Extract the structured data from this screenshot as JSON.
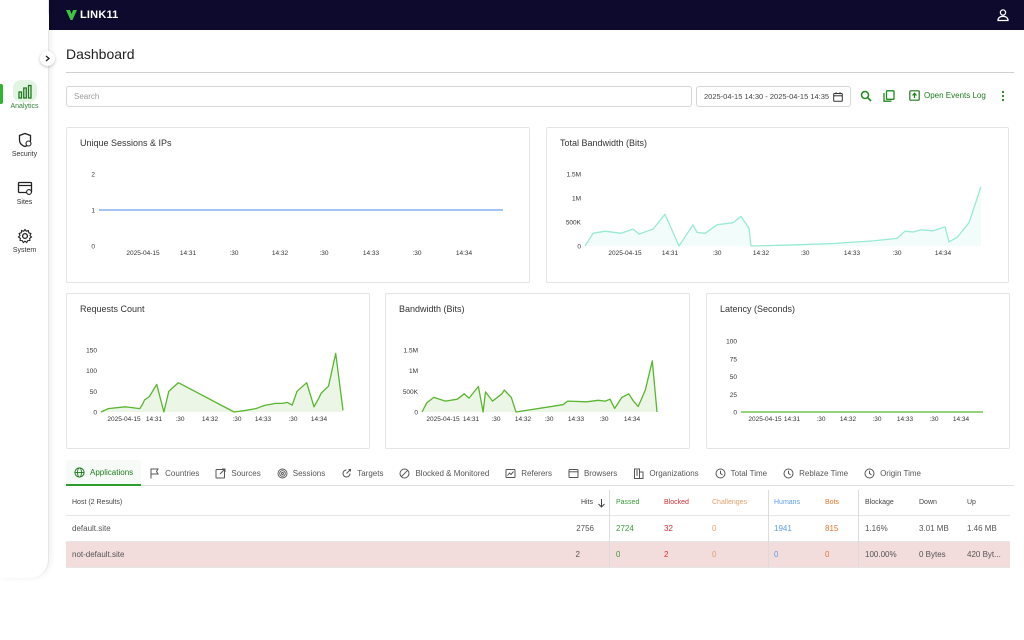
{
  "app": {
    "brand": "LINK11"
  },
  "sidebar": {
    "items": [
      {
        "label": "Analytics",
        "icon": "analytics-icon",
        "active": true
      },
      {
        "label": "Security",
        "icon": "security-icon",
        "active": false
      },
      {
        "label": "Sites",
        "icon": "sites-icon",
        "active": false
      },
      {
        "label": "System",
        "icon": "system-icon",
        "active": false
      }
    ]
  },
  "page": {
    "title": "Dashboard"
  },
  "toolbar": {
    "search_placeholder": "Search",
    "date_range": "2025-04-15 14:30 - 2025-04-15 14:35",
    "open_events_log": "Open Events Log"
  },
  "colors": {
    "accent": "#2e9d2e",
    "topbar": "#0d0a2e",
    "line_blue": "#6e9ff0",
    "teal": "#98ead3",
    "green": "#59b62e",
    "passed": "#3a9a3a",
    "blocked": "#d32f2f",
    "challenges": "#e0a070",
    "humans": "#5a9ee8",
    "bots": "#e8742c"
  },
  "chart_data": [
    {
      "id": "unique_sessions",
      "type": "line",
      "title": "Unique Sessions & IPs",
      "yticks": [
        "2",
        "1",
        "0"
      ],
      "ylim": [
        0,
        2
      ],
      "xticks": [
        "2025-04-15",
        "14:31",
        ":30",
        "14:32",
        ":30",
        "14:33",
        ":30",
        "14:34"
      ],
      "series": [
        {
          "color": "#6e9ff0",
          "x": [
            0,
            1
          ],
          "values": [
            1,
            1
          ]
        }
      ]
    },
    {
      "id": "total_bandwidth",
      "type": "area",
      "title": "Total Bandwidth (Bits)",
      "yticks": [
        "1.5M",
        "1M",
        "500K",
        "0"
      ],
      "ylim": [
        0,
        1700000
      ],
      "xticks": [
        "2025-04-15",
        "14:31",
        ":30",
        "14:32",
        ":30",
        "14:33",
        ":30",
        "14:34"
      ],
      "series": [
        {
          "color": "#98ead3",
          "x": [
            0,
            0.02,
            0.05,
            0.09,
            0.12,
            0.135,
            0.155,
            0.17,
            0.2,
            0.235,
            0.27,
            0.28,
            0.3,
            0.33,
            0.37,
            0.39,
            0.41,
            0.415,
            0.5,
            0.62,
            0.72,
            0.78,
            0.8,
            0.82,
            0.84,
            0.87,
            0.9,
            0.91,
            0.93,
            0.96,
            0.99
          ],
          "values": [
            0,
            300000,
            350000,
            300000,
            400000,
            280000,
            350000,
            400000,
            750000,
            0,
            500000,
            320000,
            300000,
            500000,
            550000,
            700000,
            420000,
            0,
            20000,
            60000,
            120000,
            180000,
            350000,
            330000,
            380000,
            360000,
            450000,
            100000,
            200000,
            550000,
            1400000
          ]
        }
      ]
    },
    {
      "id": "requests_count",
      "type": "area",
      "title": "Requests Count",
      "yticks": [
        "150",
        "100",
        "50",
        "0"
      ],
      "ylim": [
        0,
        180
      ],
      "xticks": [
        "2025-04-15",
        "14:31",
        ":30",
        "14:32",
        ":30",
        "14:33",
        ":30",
        "14:34"
      ],
      "series": [
        {
          "color": "#59b62e",
          "x": [
            0,
            0.03,
            0.1,
            0.16,
            0.17,
            0.18,
            0.2,
            0.23,
            0.26,
            0.28,
            0.295,
            0.32,
            0.55,
            0.6,
            0.64,
            0.66,
            0.68,
            0.7,
            0.72,
            0.75,
            0.77,
            0.79,
            0.81,
            0.85,
            0.88,
            0.9,
            0.91,
            0.94,
            0.97,
            1
          ],
          "values": [
            0,
            10,
            15,
            10,
            20,
            35,
            45,
            80,
            0,
            60,
            70,
            85,
            0,
            5,
            10,
            15,
            20,
            22,
            25,
            25,
            28,
            20,
            60,
            85,
            15,
            40,
            55,
            75,
            170,
            5
          ]
        }
      ]
    },
    {
      "id": "bandwidth",
      "type": "area",
      "title": "Bandwidth (Bits)",
      "yticks": [
        "1.5M",
        "1M",
        "500K",
        "0"
      ],
      "ylim": [
        0,
        1700000
      ],
      "xticks": [
        "2025-04-15",
        "14:31",
        ":30",
        "14:32",
        ":30",
        "14:33",
        ":30",
        "14:34"
      ],
      "series": [
        {
          "color": "#59b62e",
          "x": [
            0,
            0.02,
            0.05,
            0.1,
            0.15,
            0.18,
            0.2,
            0.24,
            0.26,
            0.27,
            0.3,
            0.34,
            0.35,
            0.38,
            0.4,
            0.6,
            0.62,
            0.7,
            0.75,
            0.78,
            0.8,
            0.82,
            0.85,
            0.88,
            0.9,
            0.92,
            0.95,
            0.98,
            1
          ],
          "values": [
            0,
            250000,
            400000,
            300000,
            350000,
            500000,
            380000,
            700000,
            0,
            550000,
            300000,
            500000,
            600000,
            400000,
            0,
            200000,
            300000,
            280000,
            320000,
            300000,
            350000,
            100000,
            400000,
            500000,
            300000,
            150000,
            600000,
            1400000,
            0
          ]
        }
      ]
    },
    {
      "id": "latency",
      "type": "line",
      "title": "Latency (Seconds)",
      "yticks": [
        "100",
        "75",
        "50",
        "25",
        "0"
      ],
      "ylim": [
        0,
        100
      ],
      "xticks": [
        "2025-04-15",
        "14:31",
        ":30",
        "14:32",
        ":30",
        "14:33",
        ":30",
        "14:34"
      ],
      "series": [
        {
          "color": "#59b62e",
          "x": [
            0,
            1
          ],
          "values": [
            0,
            0
          ]
        }
      ]
    }
  ],
  "tabs": [
    {
      "label": "Applications",
      "icon": "globe-icon",
      "active": true
    },
    {
      "label": "Countries",
      "icon": "flag-icon",
      "active": false
    },
    {
      "label": "Sources",
      "icon": "external-link-icon",
      "active": false
    },
    {
      "label": "Sessions",
      "icon": "fingerprint-icon",
      "active": false
    },
    {
      "label": "Targets",
      "icon": "target-icon",
      "active": false
    },
    {
      "label": "Blocked & Monitored",
      "icon": "blocked-icon",
      "active": false
    },
    {
      "label": "Referers",
      "icon": "referer-icon",
      "active": false
    },
    {
      "label": "Browsers",
      "icon": "browser-icon",
      "active": false
    },
    {
      "label": "Organizations",
      "icon": "building-icon",
      "active": false
    },
    {
      "label": "Total Time",
      "icon": "clock-icon",
      "active": false
    },
    {
      "label": "Reblaze Time",
      "icon": "clock-icon",
      "active": false
    },
    {
      "label": "Origin Time",
      "icon": "clock-icon",
      "active": false
    }
  ],
  "table": {
    "columns": [
      {
        "key": "host",
        "label": "Host (2 Results)"
      },
      {
        "key": "hits",
        "label": "Hits"
      },
      {
        "key": "passed",
        "label": "Passed"
      },
      {
        "key": "blocked",
        "label": "Blocked"
      },
      {
        "key": "challenges",
        "label": "Challenges"
      },
      {
        "key": "humans",
        "label": "Humans"
      },
      {
        "key": "bots",
        "label": "Bots"
      },
      {
        "key": "blockage",
        "label": "Blockage"
      },
      {
        "key": "down",
        "label": "Down"
      },
      {
        "key": "up",
        "label": "Up"
      }
    ],
    "rows": [
      {
        "host": "default.site",
        "hits": "2756",
        "passed": "2724",
        "blocked": "32",
        "challenges": "0",
        "humans": "1941",
        "bots": "815",
        "blockage": "1.16%",
        "down": "3.01 MB",
        "up": "1.46 MB",
        "highlight": false
      },
      {
        "host": "not-default.site",
        "hits": "2",
        "passed": "0",
        "blocked": "2",
        "challenges": "0",
        "humans": "0",
        "bots": "0",
        "blockage": "100.00%",
        "down": "0 Bytes",
        "up": "420 Byt...",
        "highlight": true
      }
    ]
  }
}
